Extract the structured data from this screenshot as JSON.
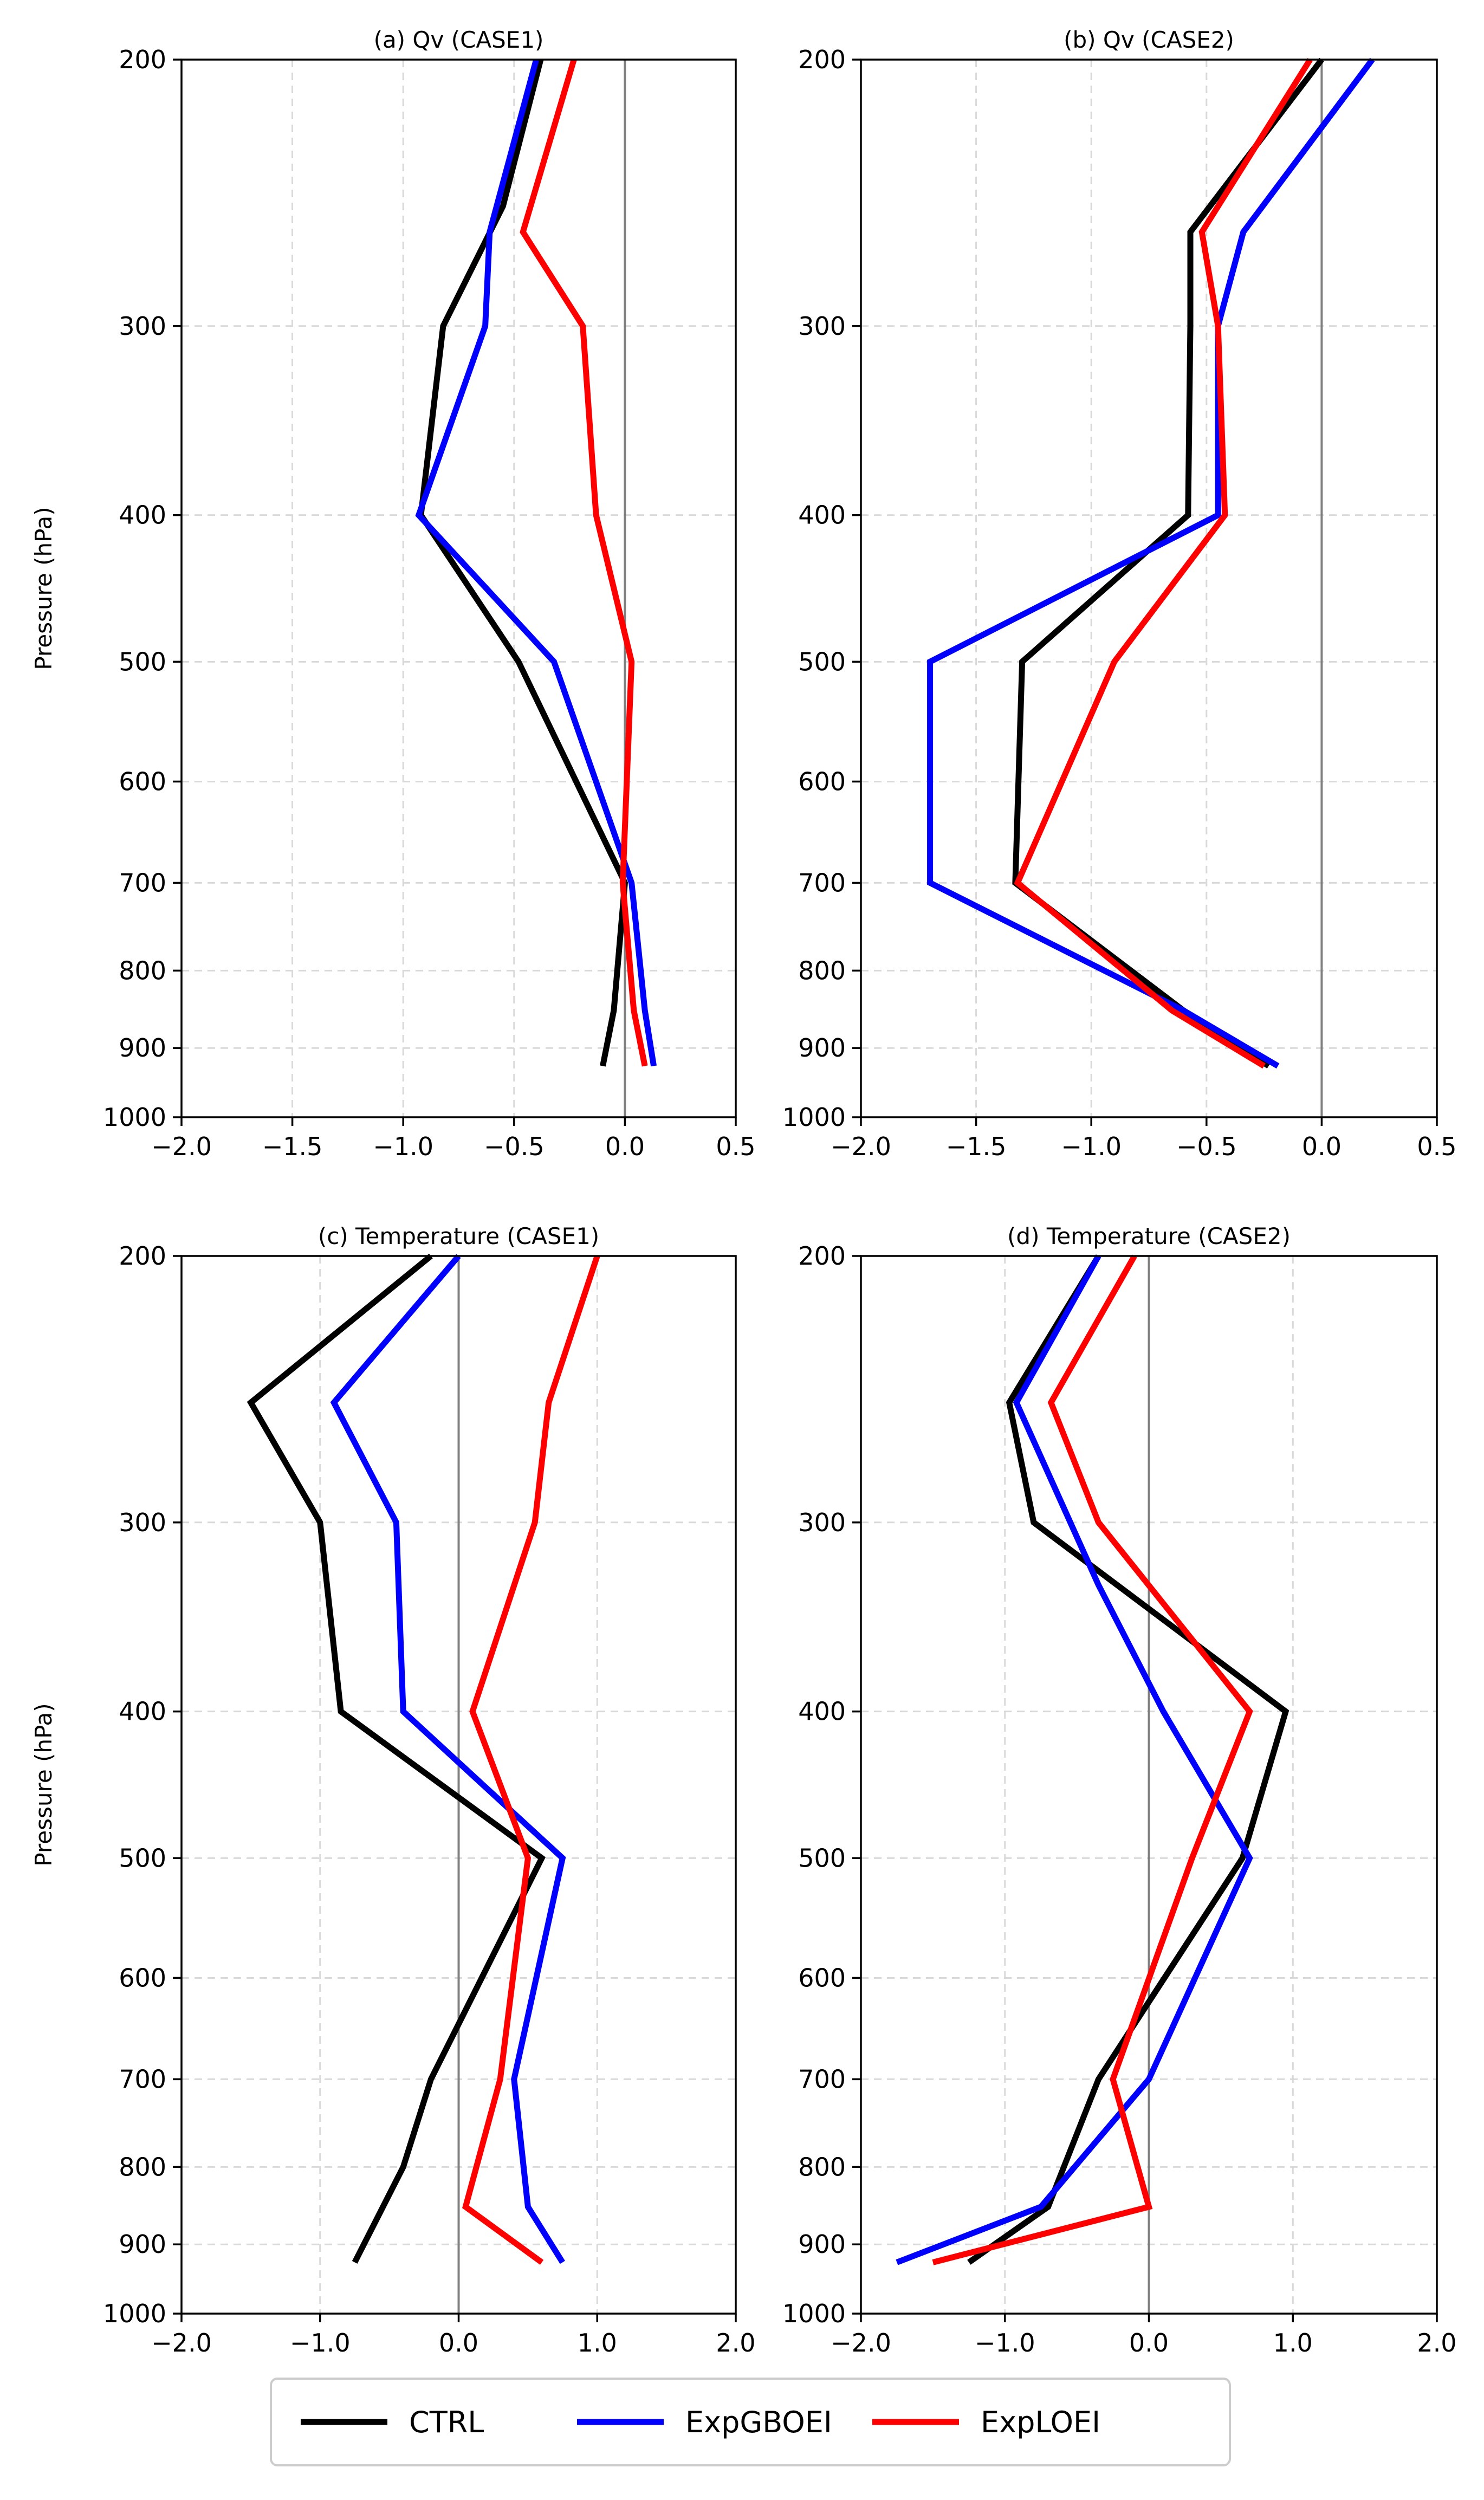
{
  "figure": {
    "legend_position": "bottom-center"
  },
  "series_styles": {
    "CTRL": "#000000",
    "ExpGBOEI": "#0000ff",
    "ExpLOEI": "#ff0000"
  },
  "chart_data": [
    {
      "type": "line",
      "title": "(a) Qv (CASE1)",
      "xlabel": "",
      "ylabel": "Pressure (hPa)",
      "xlim": [
        -2.0,
        0.5
      ],
      "xticks": [
        -2.0,
        -1.5,
        -1.0,
        -0.5,
        0.0,
        0.5
      ],
      "xtick_labels": [
        "−2.0",
        "−1.5",
        "−1.0",
        "−0.5",
        "0.0",
        "0.5"
      ],
      "ylim": [
        1000,
        200
      ],
      "yscale": "log",
      "yticks": [
        200,
        300,
        400,
        500,
        600,
        700,
        800,
        900,
        1000
      ],
      "grid": true,
      "series": [
        {
          "name": "CTRL",
          "points": [
            [
              -0.38,
              200
            ],
            [
              -0.55,
              250
            ],
            [
              -0.82,
              300
            ],
            [
              -0.92,
              400
            ],
            [
              -0.48,
              500
            ],
            [
              0.0,
              700
            ],
            [
              -0.05,
              850
            ],
            [
              -0.1,
              925
            ]
          ]
        },
        {
          "name": "ExpGBOEI",
          "points": [
            [
              -0.4,
              200
            ],
            [
              -0.61,
              260
            ],
            [
              -0.63,
              300
            ],
            [
              -0.93,
              400
            ],
            [
              -0.32,
              500
            ],
            [
              0.03,
              700
            ],
            [
              0.09,
              850
            ],
            [
              0.13,
              925
            ]
          ]
        },
        {
          "name": "ExpLOEI",
          "points": [
            [
              -0.23,
              200
            ],
            [
              -0.46,
              260
            ],
            [
              -0.19,
              300
            ],
            [
              -0.13,
              400
            ],
            [
              0.03,
              500
            ],
            [
              -0.01,
              700
            ],
            [
              0.04,
              850
            ],
            [
              0.09,
              925
            ]
          ]
        }
      ]
    },
    {
      "type": "line",
      "title": "(b) Qv (CASE2)",
      "xlabel": "",
      "ylabel": "",
      "xlim": [
        -2.0,
        0.5
      ],
      "xticks": [
        -2.0,
        -1.5,
        -1.0,
        -0.5,
        0.0,
        0.5
      ],
      "xtick_labels": [
        "−2.0",
        "−1.5",
        "−1.0",
        "−0.5",
        "0.0",
        "0.5"
      ],
      "ylim": [
        1000,
        200
      ],
      "yscale": "log",
      "yticks": [
        200,
        300,
        400,
        500,
        600,
        700,
        800,
        900,
        1000
      ],
      "grid": true,
      "series": [
        {
          "name": "CTRL",
          "points": [
            [
              0.0,
              200
            ],
            [
              -0.57,
              260
            ],
            [
              -0.57,
              300
            ],
            [
              -0.58,
              400
            ],
            [
              -1.3,
              500
            ],
            [
              -1.33,
              700
            ],
            [
              -0.6,
              850
            ],
            [
              -0.23,
              925
            ]
          ]
        },
        {
          "name": "ExpGBOEI",
          "points": [
            [
              0.22,
              200
            ],
            [
              -0.34,
              260
            ],
            [
              -0.45,
              300
            ],
            [
              -0.45,
              400
            ],
            [
              -1.7,
              500
            ],
            [
              -1.7,
              700
            ],
            [
              -0.6,
              850
            ],
            [
              -0.19,
              925
            ]
          ]
        },
        {
          "name": "ExpLOEI",
          "points": [
            [
              -0.05,
              200
            ],
            [
              -0.52,
              260
            ],
            [
              -0.45,
              300
            ],
            [
              -0.42,
              400
            ],
            [
              -0.9,
              500
            ],
            [
              -1.32,
              700
            ],
            [
              -0.65,
              850
            ],
            [
              -0.25,
              925
            ]
          ]
        }
      ]
    },
    {
      "type": "line",
      "title": "(c) Temperature (CASE1)",
      "xlabel": "",
      "ylabel": "Pressure (hPa)",
      "xlim": [
        -2.0,
        2.0
      ],
      "xticks": [
        -2.0,
        -1.0,
        0.0,
        1.0,
        2.0
      ],
      "xtick_labels": [
        "−2.0",
        "−1.0",
        "0.0",
        "1.0",
        "2.0"
      ],
      "ylim": [
        1000,
        200
      ],
      "yscale": "log",
      "yticks": [
        200,
        300,
        400,
        500,
        600,
        700,
        800,
        900,
        1000
      ],
      "grid": true,
      "series": [
        {
          "name": "CTRL",
          "points": [
            [
              -0.2,
              200
            ],
            [
              -1.5,
              250
            ],
            [
              -1.0,
              300
            ],
            [
              -0.85,
              400
            ],
            [
              0.6,
              500
            ],
            [
              -0.2,
              700
            ],
            [
              -0.4,
              800
            ],
            [
              -0.75,
              925
            ]
          ]
        },
        {
          "name": "ExpGBOEI",
          "points": [
            [
              0.0,
              200
            ],
            [
              -0.9,
              250
            ],
            [
              -0.45,
              300
            ],
            [
              -0.4,
              400
            ],
            [
              0.75,
              500
            ],
            [
              0.4,
              700
            ],
            [
              0.5,
              850
            ],
            [
              0.75,
              925
            ]
          ]
        },
        {
          "name": "ExpLOEI",
          "points": [
            [
              1.0,
              200
            ],
            [
              0.65,
              250
            ],
            [
              0.55,
              300
            ],
            [
              0.1,
              400
            ],
            [
              0.5,
              500
            ],
            [
              0.3,
              700
            ],
            [
              0.05,
              850
            ],
            [
              0.6,
              925
            ]
          ]
        }
      ]
    },
    {
      "type": "line",
      "title": "(d) Temperature (CASE2)",
      "xlabel": "",
      "ylabel": "",
      "xlim": [
        -2.0,
        2.0
      ],
      "xticks": [
        -2.0,
        -1.0,
        0.0,
        1.0,
        2.0
      ],
      "xtick_labels": [
        "−2.0",
        "−1.0",
        "0.0",
        "1.0",
        "2.0"
      ],
      "ylim": [
        1000,
        200
      ],
      "yscale": "log",
      "yticks": [
        200,
        300,
        400,
        500,
        600,
        700,
        800,
        900,
        1000
      ],
      "grid": true,
      "series": [
        {
          "name": "CTRL",
          "points": [
            [
              -0.35,
              200
            ],
            [
              -0.97,
              250
            ],
            [
              -0.8,
              300
            ],
            [
              0.95,
              400
            ],
            [
              0.65,
              500
            ],
            [
              -0.35,
              700
            ],
            [
              -0.7,
              850
            ],
            [
              -1.25,
              925
            ]
          ]
        },
        {
          "name": "ExpGBOEI",
          "points": [
            [
              -0.35,
              200
            ],
            [
              -0.92,
              250
            ],
            [
              -0.35,
              330
            ],
            [
              0.1,
              400
            ],
            [
              0.7,
              500
            ],
            [
              0.0,
              700
            ],
            [
              -0.75,
              850
            ],
            [
              -1.75,
              925
            ]
          ]
        },
        {
          "name": "ExpLOEI",
          "points": [
            [
              -0.1,
              200
            ],
            [
              -0.68,
              250
            ],
            [
              -0.35,
              300
            ],
            [
              0.7,
              400
            ],
            [
              0.3,
              500
            ],
            [
              -0.25,
              700
            ],
            [
              0.0,
              850
            ],
            [
              -1.5,
              925
            ]
          ]
        }
      ]
    }
  ],
  "legend": {
    "entries": [
      {
        "name": "CTRL",
        "label": "CTRL"
      },
      {
        "name": "ExpGBOEI",
        "label": "ExpGBOEI"
      },
      {
        "name": "ExpLOEI",
        "label": "ExpLOEI"
      }
    ]
  }
}
